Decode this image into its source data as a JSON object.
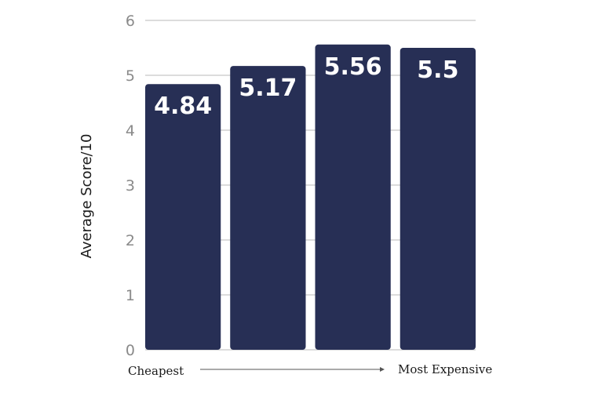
{
  "chart_data": {
    "type": "bar",
    "categories": [
      "",
      "",
      "",
      ""
    ],
    "values": [
      4.84,
      5.17,
      5.56,
      5.5
    ],
    "value_labels": [
      "4.84",
      "5.17",
      "5.56",
      "5.5"
    ],
    "ylabel": "Average Score/10",
    "x_start_label": "Cheapest",
    "x_end_label": "Most Expensive",
    "ylim": [
      0,
      6
    ],
    "yticks": [
      "0",
      "1",
      "2",
      "3",
      "4",
      "5",
      "6"
    ],
    "grid": true,
    "legend": "none",
    "bar_color": "#272f55",
    "grid_color": "#dcdcdc"
  }
}
